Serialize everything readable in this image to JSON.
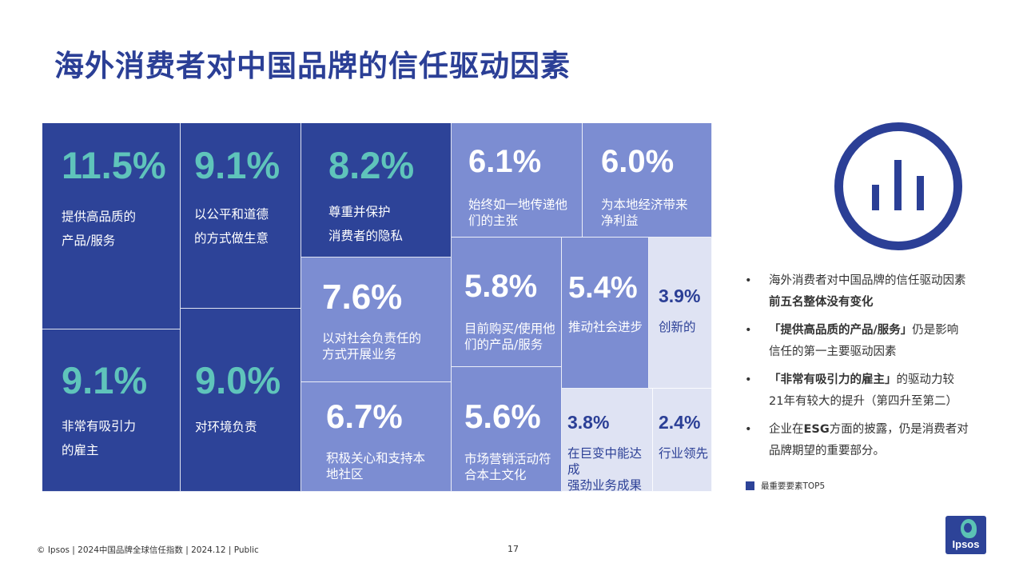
{
  "title": "海外消费者对中国品牌的信任驱动因素",
  "chart_data": {
    "type": "treemap",
    "unit": "%",
    "items": [
      {
        "value": 11.5,
        "value_text": "11.5%",
        "label_lines": [
          "提供高品质的",
          "产品/服务"
        ],
        "top5": true
      },
      {
        "value": 9.1,
        "value_text": "9.1%",
        "label_lines": [
          "以公平和道德",
          "的方式做生意"
        ],
        "top5": true
      },
      {
        "value": 8.2,
        "value_text": "8.2%",
        "label_lines": [
          "尊重并保护",
          "消费者的隐私"
        ],
        "top5": true
      },
      {
        "value": 6.1,
        "value_text": "6.1%",
        "label_lines": [
          "始终如一地传递他",
          "们的主张"
        ],
        "top5": false
      },
      {
        "value": 6.0,
        "value_text": "6.0%",
        "label_lines": [
          "为本地经济带来",
          "净利益"
        ],
        "top5": false
      },
      {
        "value": 9.1,
        "value_text": "9.1%",
        "label_lines": [
          "非常有吸引力",
          "的雇主"
        ],
        "top5": true
      },
      {
        "value": 9.0,
        "value_text": "9.0%",
        "label_lines": [
          "对环境负责"
        ],
        "top5": true
      },
      {
        "value": 7.6,
        "value_text": "7.6%",
        "label_lines": [
          "以对社会负责任的",
          "方式开展业务"
        ],
        "top5": false
      },
      {
        "value": 5.8,
        "value_text": "5.8%",
        "label_lines": [
          "目前购买/使用他",
          "们的产品/服务"
        ],
        "top5": false
      },
      {
        "value": 5.4,
        "value_text": "5.4%",
        "label_lines": [
          "推动社会进步"
        ],
        "top5": false
      },
      {
        "value": 3.9,
        "value_text": "3.9%",
        "label_lines": [
          "创新的"
        ],
        "top5": false
      },
      {
        "value": 6.7,
        "value_text": "6.7%",
        "label_lines": [
          "积极关心和支持本",
          "地社区"
        ],
        "top5": false
      },
      {
        "value": 5.6,
        "value_text": "5.6%",
        "label_lines": [
          "市场营销活动符",
          "合本土文化"
        ],
        "top5": false
      },
      {
        "value": 3.8,
        "value_text": "3.8%",
        "label_lines": [
          "在巨变中能达成",
          "强劲业务成果"
        ],
        "top5": false
      },
      {
        "value": 2.4,
        "value_text": "2.4%",
        "label_lines": [
          "行业领先"
        ],
        "top5": false
      }
    ],
    "colors": {
      "top5": "#2d4398",
      "mid": "#7c8dd2",
      "light": "#dfe3f3",
      "value_teal": "#5fc4bb",
      "value_white": "#ffffff",
      "value_navy": "#2b3f96"
    }
  },
  "notes": [
    {
      "bullet": "•",
      "parts": [
        {
          "t": "海外消费者对中国品牌的信任驱动因素",
          "b": false
        },
        {
          "t": "前五名整体没有变化",
          "b": true
        }
      ]
    },
    {
      "bullet": "•",
      "parts": [
        {
          "t": "「提供高品质的产品/服务」",
          "b": true
        },
        {
          "t": "仍是影响信任的第一主要驱动因素",
          "b": false
        }
      ]
    },
    {
      "bullet": "•",
      "parts": [
        {
          "t": "「非常有吸引力的雇主」",
          "b": true
        },
        {
          "t": "的驱动力较21年有较大的提升（第四升至第二）",
          "b": false
        }
      ]
    },
    {
      "bullet": "•",
      "parts": [
        {
          "t": "企业在",
          "b": false
        },
        {
          "t": "ESG",
          "b": true
        },
        {
          "t": "方面的披露，仍是消费者对品牌期望的重要部分。",
          "b": false
        }
      ]
    }
  ],
  "legend": {
    "label": "最重要要素TOP5"
  },
  "footer": {
    "text": "© Ipsos | 2024中国品牌全球信任指数 | 2024.12 | Public",
    "page_number": "17"
  },
  "logo": {
    "text": "Ipsos"
  },
  "icon": "bar-chart-circle-icon"
}
